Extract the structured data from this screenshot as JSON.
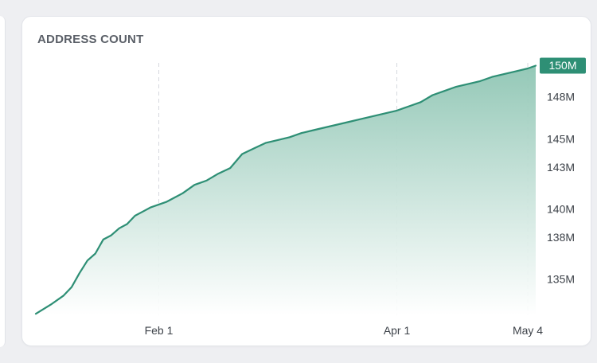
{
  "card": {
    "title": "ADDRESS COUNT"
  },
  "colors": {
    "accent": "#2e8f75",
    "fill_top": "#8ec5b3",
    "gridline": "#d6d9de",
    "background": "#eeeff2"
  },
  "current_value_badge": "150M",
  "chart_data": {
    "type": "area",
    "title": "ADDRESS COUNT",
    "xlabel": "",
    "ylabel": "",
    "x_ticks": [
      "Feb 1",
      "Apr 1",
      "May 4"
    ],
    "y_ticks": [
      "135M",
      "138M",
      "140M",
      "143M",
      "145M",
      "148M"
    ],
    "xlim": [
      "Jan 1",
      "May 6"
    ],
    "ylim": [
      132.5,
      150.5
    ],
    "unit": "M",
    "grid": "vertical dashed lines at x ticks",
    "series": [
      {
        "x": [
          "Jan 1",
          "Jan 5",
          "Jan 8",
          "Jan 10",
          "Jan 12",
          "Jan 14",
          "Jan 16",
          "Jan 18",
          "Jan 20",
          "Jan 22",
          "Jan 24",
          "Jan 26",
          "Jan 28",
          "Jan 30",
          "Feb 1",
          "Feb 3",
          "Feb 5",
          "Feb 7",
          "Feb 10",
          "Feb 13",
          "Feb 16",
          "Feb 19",
          "Feb 22",
          "Feb 25",
          "Feb 28",
          "Mar 2",
          "Mar 5",
          "Mar 8",
          "Mar 11",
          "Mar 14",
          "Mar 17",
          "Mar 20",
          "Mar 23",
          "Mar 26",
          "Mar 29",
          "Apr 1",
          "Apr 4",
          "Apr 7",
          "Apr 10",
          "Apr 13",
          "Apr 16",
          "Apr 19",
          "Apr 22",
          "Apr 25",
          "Apr 28",
          "May 1",
          "May 4",
          "May 6"
        ],
        "values": [
          132.6,
          133.3,
          133.9,
          134.5,
          135.5,
          136.4,
          136.9,
          137.9,
          138.2,
          138.7,
          139.0,
          139.6,
          139.9,
          140.2,
          140.4,
          140.6,
          140.9,
          141.2,
          141.8,
          142.1,
          142.6,
          143.0,
          144.0,
          144.4,
          144.8,
          145.0,
          145.2,
          145.5,
          145.7,
          145.9,
          146.1,
          146.3,
          146.5,
          146.7,
          146.9,
          147.1,
          147.4,
          147.7,
          148.2,
          148.5,
          148.8,
          149.0,
          149.2,
          149.5,
          149.7,
          149.9,
          150.1,
          150.3
        ]
      }
    ]
  }
}
